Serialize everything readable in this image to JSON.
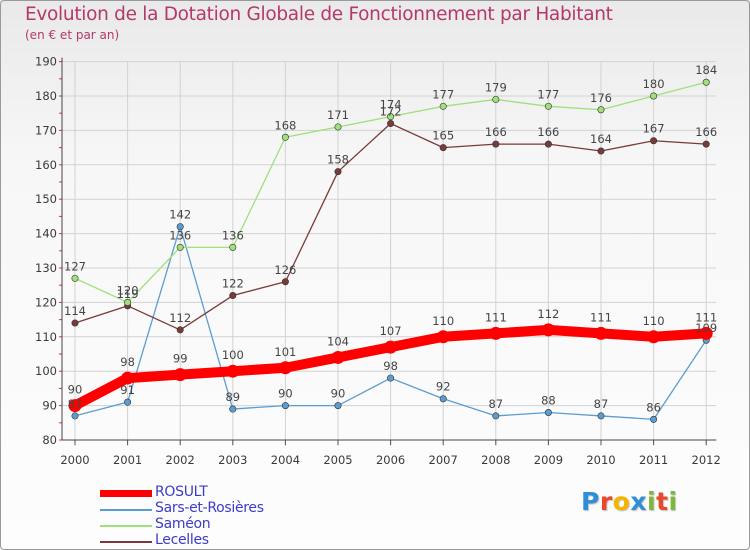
{
  "header": {
    "title": "Evolution de la Dotation Globale de Fonctionnement par Habitant",
    "subtitle": "(en € et par an)"
  },
  "logo": {
    "text": "Proxiti",
    "letter_colors": [
      "#2e8fd8",
      "#e8492c",
      "#f4b400",
      "#2e8fd8",
      "#7cb93a",
      "#e8492c",
      "#7cb93a"
    ]
  },
  "chart_data": {
    "type": "line",
    "x": [
      "2000",
      "2001",
      "2002",
      "2003",
      "2004",
      "2005",
      "2006",
      "2007",
      "2008",
      "2009",
      "2010",
      "2011",
      "2012"
    ],
    "ylim": [
      80,
      190
    ],
    "yticks": [
      "80",
      "90",
      "100",
      "110",
      "120",
      "130",
      "140",
      "150",
      "160",
      "170",
      "180",
      "190"
    ],
    "grid": true,
    "legend_position": "bottom-left",
    "series": [
      {
        "name": "ROSULT",
        "color": "#ff0000",
        "values": [
          90,
          98,
          99,
          100,
          101,
          104,
          107,
          110,
          111,
          112,
          111,
          110,
          111
        ]
      },
      {
        "name": "Sars-et-Rosières",
        "color": "#5b9dd0",
        "values": [
          87,
          91,
          142,
          89,
          90,
          90,
          98,
          92,
          87,
          88,
          87,
          86,
          109
        ]
      },
      {
        "name": "Saméon",
        "color": "#9fe07a",
        "values": [
          127,
          120,
          136,
          136,
          168,
          171,
          174,
          177,
          179,
          177,
          176,
          180,
          184
        ]
      },
      {
        "name": "Lecelles",
        "color": "#7a3a3a",
        "values": [
          114,
          119,
          112,
          122,
          126,
          158,
          172,
          165,
          166,
          166,
          164,
          167,
          166
        ]
      }
    ]
  }
}
